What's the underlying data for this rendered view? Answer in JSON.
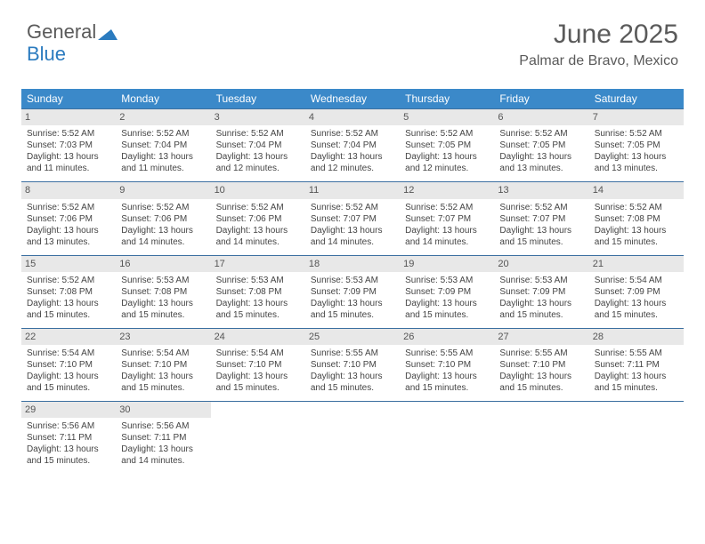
{
  "logo": {
    "part1": "General",
    "part2": "Blue",
    "tri_color": "#2b7bbf"
  },
  "header": {
    "title": "June 2025",
    "location": "Palmar de Bravo, Mexico"
  },
  "colors": {
    "header_bg": "#3b89c9",
    "header_fg": "#ffffff",
    "daynum_bg": "#e8e8e8",
    "week_border": "#3b6fa0",
    "text": "#444444"
  },
  "weekdays": [
    "Sunday",
    "Monday",
    "Tuesday",
    "Wednesday",
    "Thursday",
    "Friday",
    "Saturday"
  ],
  "days": [
    {
      "n": "1",
      "sr": "5:52 AM",
      "ss": "7:03 PM",
      "dl": "13 hours and 11 minutes."
    },
    {
      "n": "2",
      "sr": "5:52 AM",
      "ss": "7:04 PM",
      "dl": "13 hours and 11 minutes."
    },
    {
      "n": "3",
      "sr": "5:52 AM",
      "ss": "7:04 PM",
      "dl": "13 hours and 12 minutes."
    },
    {
      "n": "4",
      "sr": "5:52 AM",
      "ss": "7:04 PM",
      "dl": "13 hours and 12 minutes."
    },
    {
      "n": "5",
      "sr": "5:52 AM",
      "ss": "7:05 PM",
      "dl": "13 hours and 12 minutes."
    },
    {
      "n": "6",
      "sr": "5:52 AM",
      "ss": "7:05 PM",
      "dl": "13 hours and 13 minutes."
    },
    {
      "n": "7",
      "sr": "5:52 AM",
      "ss": "7:05 PM",
      "dl": "13 hours and 13 minutes."
    },
    {
      "n": "8",
      "sr": "5:52 AM",
      "ss": "7:06 PM",
      "dl": "13 hours and 13 minutes."
    },
    {
      "n": "9",
      "sr": "5:52 AM",
      "ss": "7:06 PM",
      "dl": "13 hours and 14 minutes."
    },
    {
      "n": "10",
      "sr": "5:52 AM",
      "ss": "7:06 PM",
      "dl": "13 hours and 14 minutes."
    },
    {
      "n": "11",
      "sr": "5:52 AM",
      "ss": "7:07 PM",
      "dl": "13 hours and 14 minutes."
    },
    {
      "n": "12",
      "sr": "5:52 AM",
      "ss": "7:07 PM",
      "dl": "13 hours and 14 minutes."
    },
    {
      "n": "13",
      "sr": "5:52 AM",
      "ss": "7:07 PM",
      "dl": "13 hours and 15 minutes."
    },
    {
      "n": "14",
      "sr": "5:52 AM",
      "ss": "7:08 PM",
      "dl": "13 hours and 15 minutes."
    },
    {
      "n": "15",
      "sr": "5:52 AM",
      "ss": "7:08 PM",
      "dl": "13 hours and 15 minutes."
    },
    {
      "n": "16",
      "sr": "5:53 AM",
      "ss": "7:08 PM",
      "dl": "13 hours and 15 minutes."
    },
    {
      "n": "17",
      "sr": "5:53 AM",
      "ss": "7:08 PM",
      "dl": "13 hours and 15 minutes."
    },
    {
      "n": "18",
      "sr": "5:53 AM",
      "ss": "7:09 PM",
      "dl": "13 hours and 15 minutes."
    },
    {
      "n": "19",
      "sr": "5:53 AM",
      "ss": "7:09 PM",
      "dl": "13 hours and 15 minutes."
    },
    {
      "n": "20",
      "sr": "5:53 AM",
      "ss": "7:09 PM",
      "dl": "13 hours and 15 minutes."
    },
    {
      "n": "21",
      "sr": "5:54 AM",
      "ss": "7:09 PM",
      "dl": "13 hours and 15 minutes."
    },
    {
      "n": "22",
      "sr": "5:54 AM",
      "ss": "7:10 PM",
      "dl": "13 hours and 15 minutes."
    },
    {
      "n": "23",
      "sr": "5:54 AM",
      "ss": "7:10 PM",
      "dl": "13 hours and 15 minutes."
    },
    {
      "n": "24",
      "sr": "5:54 AM",
      "ss": "7:10 PM",
      "dl": "13 hours and 15 minutes."
    },
    {
      "n": "25",
      "sr": "5:55 AM",
      "ss": "7:10 PM",
      "dl": "13 hours and 15 minutes."
    },
    {
      "n": "26",
      "sr": "5:55 AM",
      "ss": "7:10 PM",
      "dl": "13 hours and 15 minutes."
    },
    {
      "n": "27",
      "sr": "5:55 AM",
      "ss": "7:10 PM",
      "dl": "13 hours and 15 minutes."
    },
    {
      "n": "28",
      "sr": "5:55 AM",
      "ss": "7:11 PM",
      "dl": "13 hours and 15 minutes."
    },
    {
      "n": "29",
      "sr": "5:56 AM",
      "ss": "7:11 PM",
      "dl": "13 hours and 15 minutes."
    },
    {
      "n": "30",
      "sr": "5:56 AM",
      "ss": "7:11 PM",
      "dl": "13 hours and 14 minutes."
    }
  ],
  "labels": {
    "sunrise": "Sunrise: ",
    "sunset": "Sunset: ",
    "daylight": "Daylight: "
  }
}
